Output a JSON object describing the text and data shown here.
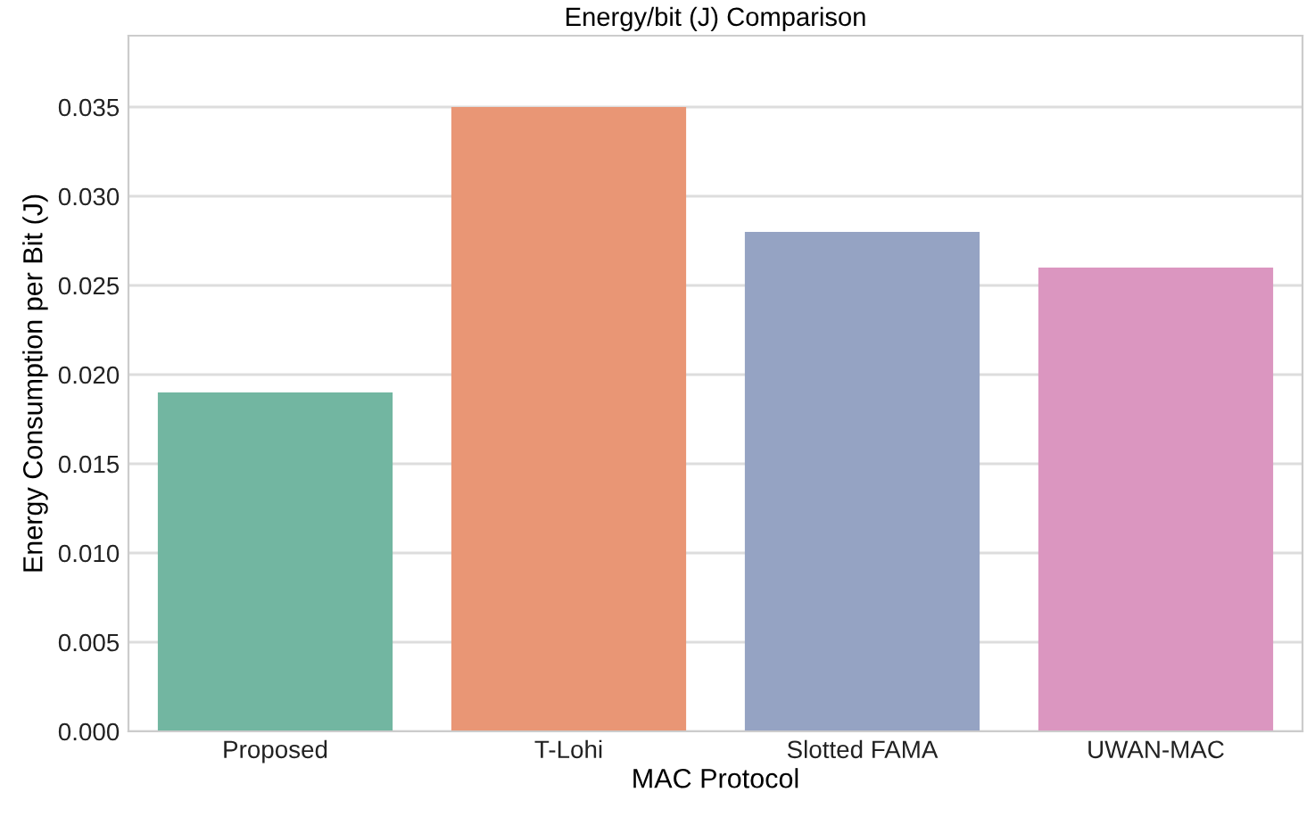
{
  "chart_data": {
    "type": "bar",
    "title": "Energy/bit (J) Comparison",
    "xlabel": "MAC Protocol",
    "ylabel": "Energy Consumption per Bit (J)",
    "categories": [
      "Proposed",
      "T-Lohi",
      "Slotted FAMA",
      "UWAN-MAC"
    ],
    "values": [
      0.019,
      0.035,
      0.028,
      0.026
    ],
    "colors": [
      "#72b6a1",
      "#e99675",
      "#95a3c3",
      "#db96c0"
    ],
    "ylim": [
      0,
      0.039
    ],
    "yticks": [
      {
        "value": 0,
        "label": "0.000"
      },
      {
        "value": 0.005,
        "label": "0.005"
      },
      {
        "value": 0.01,
        "label": "0.010"
      },
      {
        "value": 0.015,
        "label": "0.015"
      },
      {
        "value": 0.02,
        "label": "0.020"
      },
      {
        "value": 0.025,
        "label": "0.025"
      },
      {
        "value": 0.03,
        "label": "0.030"
      },
      {
        "value": 0.035,
        "label": "0.035"
      }
    ],
    "grid": "y"
  }
}
